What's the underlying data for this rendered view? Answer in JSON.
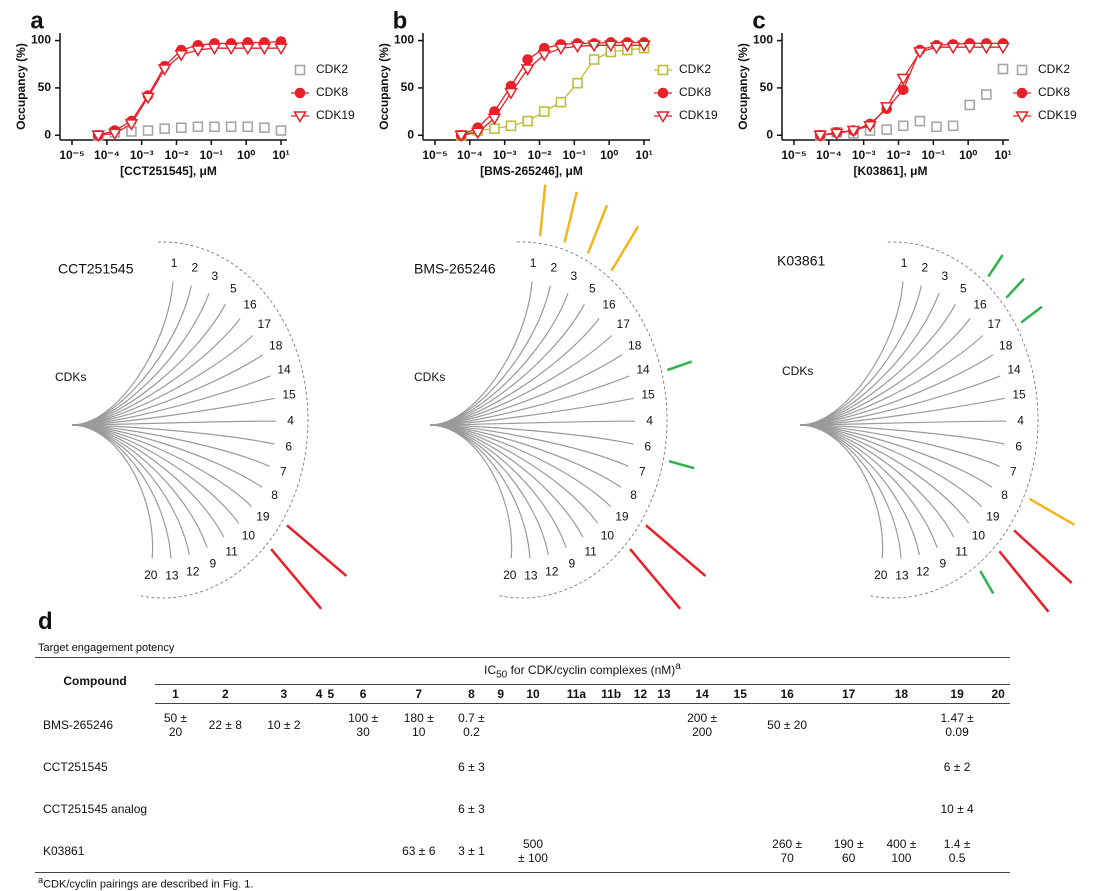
{
  "chart_data": [
    {
      "panel": "a",
      "type": "line",
      "xscale": "log",
      "ylabel": "Occupancy (%)",
      "xlabel": "[CCT251545], μM",
      "x": [
        5.65e-05,
        0.000169,
        0.000508,
        0.00152,
        0.00457,
        0.0137,
        0.0412,
        0.123,
        0.37,
        1.11,
        3.33,
        10
      ],
      "xlim": [
        1e-05,
        10
      ],
      "xticks": [
        {
          "value": 1e-05,
          "label": "10⁻⁵"
        },
        {
          "value": 0.0001,
          "label": "10⁻⁴"
        },
        {
          "value": 0.001,
          "label": "10⁻³"
        },
        {
          "value": 0.01,
          "label": "10⁻²"
        },
        {
          "value": 0.1,
          "label": "10⁻¹"
        },
        {
          "value": 1,
          "label": "10⁰"
        },
        {
          "value": 10,
          "label": "10¹"
        }
      ],
      "ylim": [
        -5,
        108
      ],
      "yticks": [
        0,
        50,
        100
      ],
      "series": [
        {
          "name": "CDK2",
          "color": "#a6a6a6",
          "marker": "square",
          "line": false,
          "values": [
            0,
            3,
            4,
            5,
            7,
            8,
            9,
            9,
            9,
            9,
            8,
            5
          ]
        },
        {
          "name": "CDK8",
          "color": "#e8202a",
          "marker": "circle",
          "line": true,
          "values": [
            0,
            5,
            15,
            42,
            73,
            90,
            95,
            97,
            97,
            98,
            98,
            99
          ]
        },
        {
          "name": "CDK19",
          "color": "#e8202a",
          "marker": "triangle-down",
          "line": true,
          "values": [
            0,
            2,
            12,
            40,
            70,
            85,
            90,
            92,
            92,
            92,
            92,
            92
          ]
        }
      ]
    },
    {
      "panel": "b",
      "type": "line",
      "xscale": "log",
      "ylabel": "Occupancy (%)",
      "xlabel": "[BMS-265246], μM",
      "x": [
        5.65e-05,
        0.000169,
        0.000508,
        0.00152,
        0.00457,
        0.0137,
        0.0412,
        0.123,
        0.37,
        1.11,
        3.33,
        10
      ],
      "xlim": [
        1e-05,
        10
      ],
      "xticks": [
        {
          "value": 1e-05,
          "label": "10⁻⁵"
        },
        {
          "value": 0.0001,
          "label": "10⁻⁴"
        },
        {
          "value": 0.001,
          "label": "10⁻³"
        },
        {
          "value": 0.01,
          "label": "10⁻²"
        },
        {
          "value": 0.1,
          "label": "10⁻¹"
        },
        {
          "value": 1,
          "label": "10⁰"
        },
        {
          "value": 10,
          "label": "10¹"
        }
      ],
      "ylim": [
        -5,
        108
      ],
      "yticks": [
        0,
        50,
        100
      ],
      "series": [
        {
          "name": "CDK2",
          "color": "#bdbd3a",
          "marker": "square",
          "line": true,
          "values": [
            0,
            5,
            7,
            10,
            15,
            25,
            35,
            55,
            80,
            88,
            90,
            92
          ]
        },
        {
          "name": "CDK8",
          "color": "#e8202a",
          "marker": "circle",
          "line": true,
          "values": [
            0,
            8,
            25,
            52,
            80,
            92,
            96,
            97,
            97,
            98,
            98,
            98
          ]
        },
        {
          "name": "CDK19",
          "color": "#e8202a",
          "marker": "triangle-down",
          "line": true,
          "values": [
            0,
            3,
            18,
            45,
            70,
            85,
            92,
            94,
            95,
            95,
            95,
            95
          ]
        }
      ]
    },
    {
      "panel": "c",
      "type": "line",
      "xscale": "log",
      "ylabel": "Occupancy (%)",
      "xlabel": "[K03861], μM",
      "x": [
        5.65e-05,
        0.000169,
        0.000508,
        0.00152,
        0.00457,
        0.0137,
        0.0412,
        0.123,
        0.37,
        1.11,
        3.33,
        10
      ],
      "xlim": [
        1e-05,
        10
      ],
      "xticks": [
        {
          "value": 1e-05,
          "label": "10⁻⁵"
        },
        {
          "value": 0.0001,
          "label": "10⁻⁴"
        },
        {
          "value": 0.001,
          "label": "10⁻³"
        },
        {
          "value": 0.01,
          "label": "10⁻²"
        },
        {
          "value": 0.1,
          "label": "10⁻¹"
        },
        {
          "value": 1,
          "label": "10⁰"
        },
        {
          "value": 10,
          "label": "10¹"
        }
      ],
      "ylim": [
        -5,
        108
      ],
      "yticks": [
        0,
        50,
        100
      ],
      "series": [
        {
          "name": "CDK2",
          "color": "#a6a6a6",
          "marker": "square",
          "line": false,
          "values": [
            0,
            3,
            2,
            5,
            6,
            10,
            15,
            9,
            10,
            32,
            43,
            70
          ]
        },
        {
          "name": "CDK8",
          "color": "#e8202a",
          "marker": "circle",
          "line": true,
          "values": [
            0,
            3,
            5,
            12,
            28,
            48,
            90,
            95,
            96,
            97,
            97,
            97
          ]
        },
        {
          "name": "CDK19",
          "color": "#e8202a",
          "marker": "triangle-down",
          "line": true,
          "values": [
            0,
            2,
            5,
            10,
            30,
            60,
            88,
            93,
            93,
            93,
            93,
            93
          ]
        }
      ]
    }
  ],
  "trees": [
    {
      "compound": "CCT251545",
      "group": "CDKs",
      "leaves": [
        "1",
        "2",
        "3",
        "5",
        "16",
        "17",
        "18",
        "14",
        "15",
        "4",
        "6",
        "7",
        "8",
        "19",
        "10",
        "11",
        "9",
        "12",
        "13",
        "20"
      ]
    },
    {
      "compound": "BMS-265246",
      "group": "CDKs",
      "leaves": [
        "1",
        "2",
        "3",
        "5",
        "16",
        "17",
        "18",
        "14",
        "15",
        "4",
        "6",
        "7",
        "8",
        "19",
        "10",
        "11",
        "9",
        "12",
        "13",
        "20"
      ]
    },
    {
      "compound": "K03861",
      "group": "CDKs",
      "leaves": [
        "1",
        "2",
        "3",
        "5",
        "16",
        "17",
        "18",
        "14",
        "15",
        "4",
        "6",
        "7",
        "8",
        "19",
        "10",
        "11",
        "9",
        "12",
        "13",
        "20"
      ]
    }
  ],
  "table": {
    "panel": "d",
    "caption": "Target engagement potency",
    "header_label": "Compound",
    "group": {
      "pre": "IC",
      "sub": "50",
      "post": " for CDK/cyclin complexes (nM)",
      "sup": "a"
    },
    "columns": [
      "1",
      "2",
      "3",
      "4",
      "5",
      "6",
      "7",
      "8",
      "9",
      "10",
      "11a",
      "11b",
      "12",
      "13",
      "14",
      "15",
      "16",
      "17",
      "18",
      "19",
      "20"
    ],
    "rows": [
      {
        "compound": "BMS-265246",
        "cells": [
          "50 ±\n20",
          "22 ± 8",
          "10 ± 2",
          null,
          null,
          "100 ±\n30",
          "180 ±\n10",
          "0.7 ±\n0.2",
          null,
          null,
          null,
          null,
          null,
          null,
          "200 ±\n200",
          null,
          "50 ± 20",
          null,
          null,
          "1.47 ±\n0.09",
          null
        ]
      },
      {
        "compound": "CCT251545",
        "cells": [
          null,
          null,
          null,
          null,
          null,
          null,
          null,
          "6 ± 3",
          null,
          null,
          null,
          null,
          null,
          null,
          null,
          null,
          null,
          null,
          null,
          "6 ± 2",
          null
        ]
      },
      {
        "compound": "CCT251545 analog",
        "cells": [
          null,
          null,
          null,
          null,
          null,
          null,
          null,
          "6 ± 3",
          null,
          null,
          null,
          null,
          null,
          null,
          null,
          null,
          null,
          null,
          null,
          "10 ± 4",
          null
        ]
      },
      {
        "compound": "K03861",
        "cells": [
          null,
          null,
          null,
          null,
          null,
          null,
          "63 ± 6",
          "3 ± 1",
          null,
          "500\n± 100",
          null,
          null,
          null,
          null,
          null,
          null,
          "260 ±\n70",
          "190 ±\n60",
          "400 ±\n100",
          "1.4 ±\n0.5",
          null
        ]
      }
    ],
    "footnote": {
      "mark": "a",
      "text": "CDK/cyclin pairings are described in Fig. 1."
    }
  }
}
